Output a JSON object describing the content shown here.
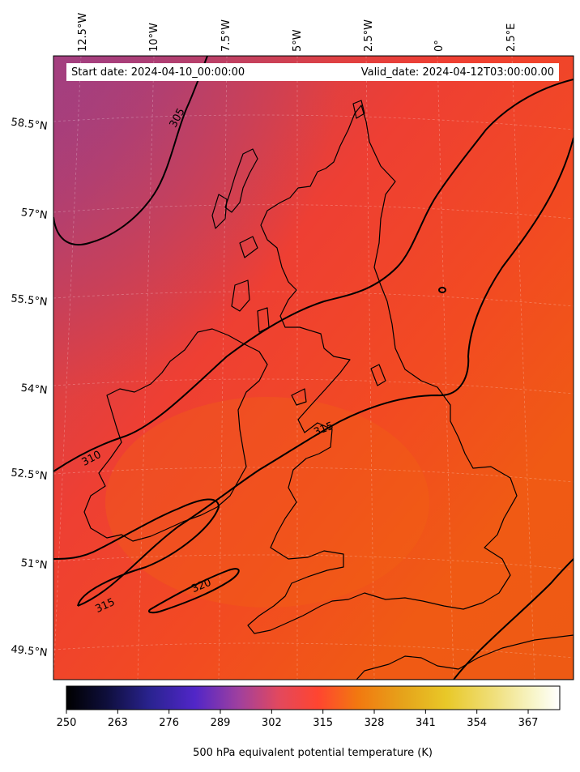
{
  "header": {
    "start_date": "Start date: 2024-04-10_00:00:00",
    "valid_date": "Valid_date: 2024-04-12T03:00:00.00"
  },
  "top_longitudes": [
    "12.5°W",
    "10°W",
    "7.5°W",
    "5°W",
    "2.5°W",
    "0°",
    "2.5°E"
  ],
  "left_latitudes": [
    "58.5°N",
    "57°N",
    "55.5°N",
    "54°N",
    "52.5°N",
    "51°N",
    "49.5°N"
  ],
  "contour_labels": [
    "305",
    "310",
    "315",
    "315",
    "320"
  ],
  "colorbar": {
    "ticks": [
      "250",
      "263",
      "276",
      "289",
      "302",
      "315",
      "328",
      "341",
      "354",
      "367"
    ],
    "label": "500 hPa equivalent potential temperature (K)",
    "range": [
      250,
      375
    ],
    "colormap": "CMRmap-like",
    "colors": [
      "#000000",
      "#1a1a60",
      "#4f25c8",
      "#a0409e",
      "#e24a60",
      "#ff4530",
      "#f27810",
      "#e8a818",
      "#eed24a",
      "#f6f2a6",
      "#ffffff"
    ]
  }
}
